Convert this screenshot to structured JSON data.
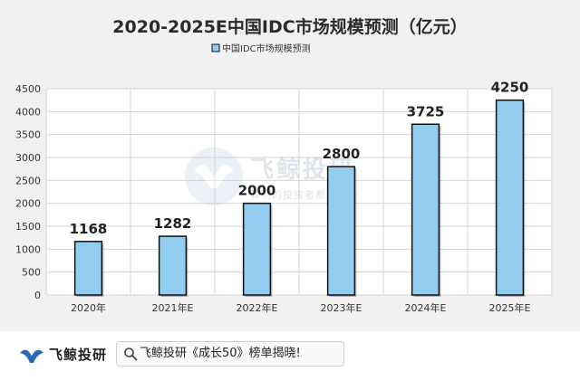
{
  "chart_data": {
    "type": "bar",
    "title": "2020-2025E中国IDC市场规模预测（亿元）",
    "categories": [
      "2020年",
      "2021年E",
      "2022年E",
      "2023年E",
      "2024年E",
      "2025年E"
    ],
    "series": [
      {
        "name": "中国IDC市场规模预测",
        "values": [
          1168,
          1282,
          2000,
          2800,
          3725,
          4250
        ]
      }
    ],
    "data_labels": [
      "1168",
      "1282",
      "2000",
      "2800",
      "3725",
      "4250"
    ],
    "y_ticks": [
      "0",
      "500",
      "1000",
      "1500",
      "2000",
      "2500",
      "3000",
      "3500",
      "4000",
      "4500"
    ],
    "ylim": [
      0,
      4500
    ],
    "grid": true,
    "legend_position": "top",
    "colors": {
      "bar": "#92ccee",
      "bar_border": "#111111",
      "grid": "#d4d4d4",
      "plot_bg": "#ffffff",
      "panel_bg": "#f1f1f1"
    }
  },
  "watermark": {
    "brand": "飞鲸投研",
    "slogan": "聪明的投资者都在关注"
  },
  "footer": {
    "brand": "飞鲸投研",
    "search_text": "飞鲸投研《成长50》榜单揭晓!"
  }
}
